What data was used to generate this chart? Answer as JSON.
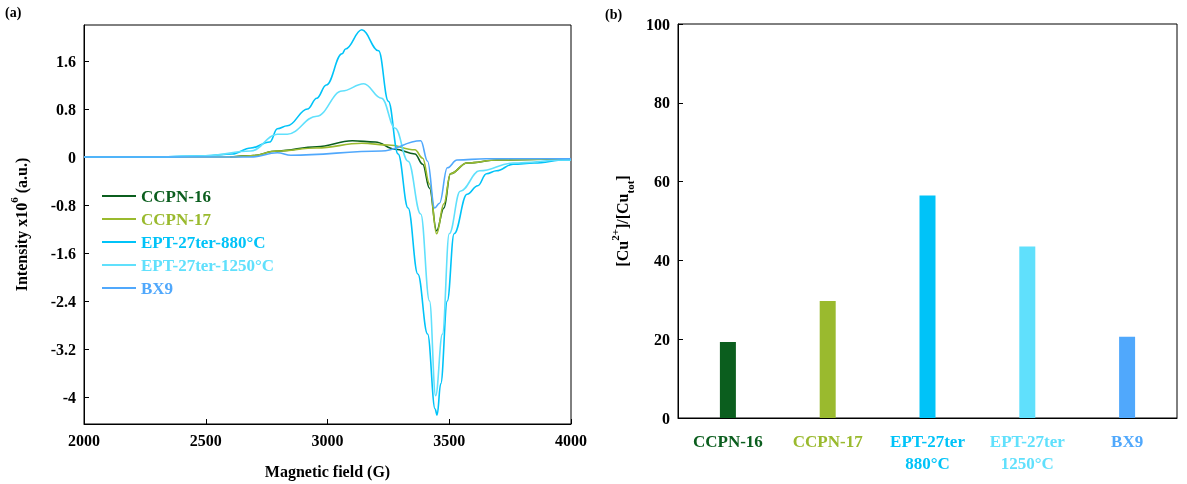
{
  "chart_data": [
    {
      "type": "line",
      "title": "(a)",
      "xlabel": "Magnetic field (G)",
      "ylabel": "Intensity x10$^{6}$ (a.u.)",
      "xlim": [
        2000,
        4000
      ],
      "xticks": [
        2000,
        2500,
        3000,
        3500,
        4000
      ],
      "ylim": [
        -4.45,
        2.2
      ],
      "yticks": [
        -4,
        -3.2,
        -2.4,
        -1.6,
        -0.8,
        0,
        0.8,
        1.6
      ],
      "legend": "left",
      "grid": false,
      "marker": "none",
      "line_style": "solid",
      "series": [
        {
          "name": "CCPN-16",
          "color": "#0b5e1e",
          "x": [
            2600,
            2685,
            2794,
            2956,
            3102,
            3196,
            3278,
            3359,
            3391,
            3419,
            3448,
            3478,
            3505,
            3573,
            3700,
            3976,
            4000
          ],
          "values": [
            0,
            0.02,
            0.1,
            0.17,
            0.27,
            0.25,
            0.13,
            0.05,
            -0.12,
            -0.52,
            -1.23,
            -0.85,
            -0.28,
            -0.1,
            -0.05,
            -0.03,
            -0.03
          ]
        },
        {
          "name": "CCPN-17",
          "color": "#9aba2e",
          "x": [
            2000,
            2300,
            2600,
            2685,
            2794,
            2956,
            3141,
            3250,
            3359,
            3391,
            3419,
            3448,
            3478,
            3505,
            3573,
            3700,
            3976,
            4000
          ],
          "values": [
            0,
            0,
            0,
            0.02,
            0.1,
            0.15,
            0.23,
            0.2,
            0.12,
            -0.02,
            -0.45,
            -1.28,
            -0.78,
            -0.28,
            -0.1,
            -0.05,
            -0.03,
            -0.03
          ]
        },
        {
          "name": "EPT-27ter-880°C",
          "color": "#00c3f8",
          "x": [
            2000,
            2300,
            2500,
            2608,
            2685,
            2763,
            2794,
            2835,
            2918,
            2956,
            2995,
            3060,
            3074,
            3141,
            3210,
            3250,
            3290,
            3331,
            3371,
            3411,
            3442,
            3450,
            3465,
            3492,
            3520,
            3573,
            3617,
            3653,
            3694,
            3762,
            3849,
            3976,
            4000
          ],
          "values": [
            0,
            0,
            0.02,
            0.05,
            0.15,
            0.25,
            0.47,
            0.52,
            0.8,
            0.98,
            1.2,
            1.72,
            1.8,
            2.12,
            1.77,
            0.93,
            0.05,
            -0.85,
            -1.95,
            -2.95,
            -4.2,
            -4.3,
            -3.78,
            -2.4,
            -1.28,
            -0.62,
            -0.48,
            -0.28,
            -0.23,
            -0.12,
            -0.1,
            -0.05,
            -0.05
          ]
        },
        {
          "name": "EPT-27ter-1250°C",
          "color": "#60e0fc",
          "x": [
            2000,
            2300,
            2500,
            2685,
            2794,
            2835,
            2956,
            3060,
            3149,
            3222,
            3278,
            3331,
            3383,
            3419,
            3444,
            3472,
            3500,
            3545,
            3625,
            3762,
            3976,
            4000
          ],
          "values": [
            0,
            0,
            0.02,
            0.1,
            0.38,
            0.38,
            0.68,
            1.1,
            1.22,
            0.98,
            0.48,
            -0.07,
            -0.95,
            -2.4,
            -3.98,
            -2.95,
            -1.28,
            -0.57,
            -0.23,
            -0.1,
            -0.05,
            -0.05
          ]
        },
        {
          "name": "BX9",
          "color": "#50a8fc",
          "x": [
            2000,
            2500,
            2685,
            2794,
            2850,
            3222,
            3383,
            3411,
            3440,
            3460,
            3492,
            3532,
            3650,
            4000
          ],
          "values": [
            0,
            0,
            0,
            0.07,
            0.03,
            0.1,
            0.27,
            -0.07,
            -0.85,
            -0.77,
            -0.18,
            -0.05,
            -0.03,
            -0.03
          ]
        }
      ]
    },
    {
      "type": "bar",
      "title": "(b)",
      "ylabel": "[Cu$^{2+}$]/[Cu$_{tot}$]",
      "categories": [
        "CCPN-16",
        "CCPN-17",
        "EPT-27ter\n880°C",
        "EPT-27ter\n1250°C",
        "BX9"
      ],
      "values": [
        19.3,
        29.7,
        56.5,
        43.5,
        20.6
      ],
      "colors": [
        "#0b5e1e",
        "#9aba2e",
        "#00c3f8",
        "#60e0fc",
        "#50a8fc"
      ],
      "ylim": [
        0,
        100
      ],
      "yticks": [
        0,
        20,
        40,
        60,
        80,
        100
      ],
      "grid": false
    }
  ]
}
